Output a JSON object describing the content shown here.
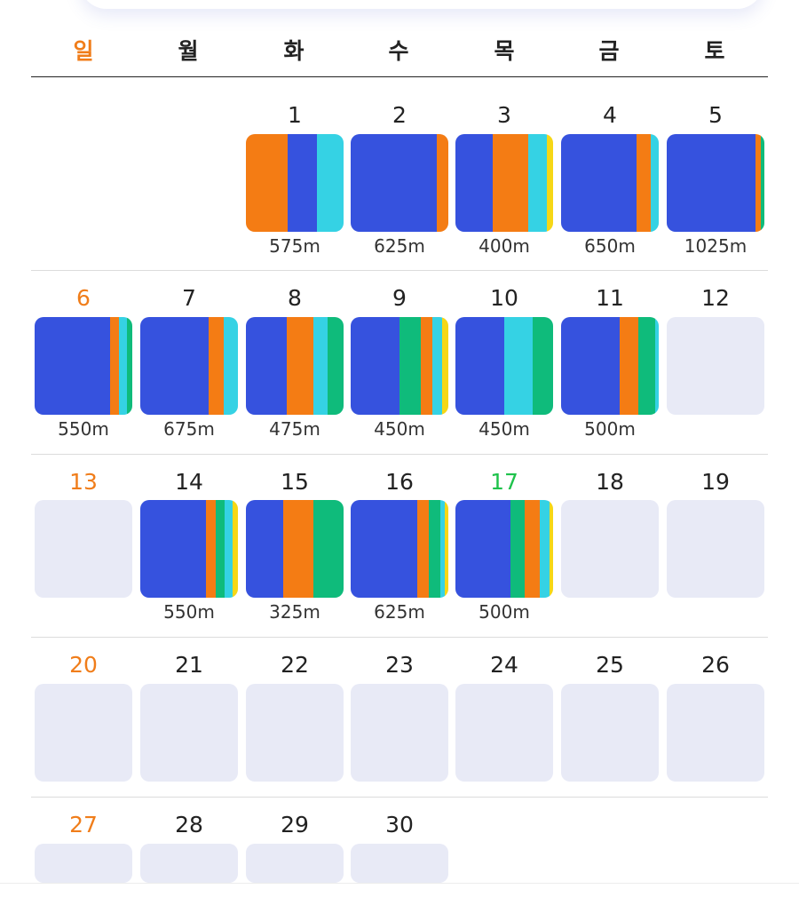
{
  "weekdays": [
    "일",
    "월",
    "화",
    "수",
    "목",
    "금",
    "토"
  ],
  "colors": {
    "blue": "#3652de",
    "orange": "#f47c14",
    "cyan": "#35d2e4",
    "green": "#0fbb7b",
    "yellow": "#f6d716",
    "empty": "#e8eaf6",
    "sunday": "#f07d1a",
    "today": "#1ec24b"
  },
  "month": {
    "first_weekday": 2,
    "days_in_month": 30,
    "today": 17
  },
  "days": [
    {
      "day": 1,
      "distance": "575m",
      "segments": [
        [
          "orange",
          43
        ],
        [
          "blue",
          30
        ],
        [
          "cyan",
          27
        ]
      ]
    },
    {
      "day": 2,
      "distance": "625m",
      "segments": [
        [
          "blue",
          88
        ],
        [
          "orange",
          12
        ]
      ]
    },
    {
      "day": 3,
      "distance": "400m",
      "segments": [
        [
          "blue",
          38
        ],
        [
          "orange",
          37
        ],
        [
          "cyan",
          19
        ],
        [
          "yellow",
          6
        ]
      ]
    },
    {
      "day": 4,
      "distance": "650m",
      "segments": [
        [
          "blue",
          77
        ],
        [
          "orange",
          15
        ],
        [
          "cyan",
          8
        ]
      ]
    },
    {
      "day": 5,
      "distance": "1025m",
      "segments": [
        [
          "blue",
          91
        ],
        [
          "orange",
          5
        ],
        [
          "green",
          4
        ]
      ]
    },
    {
      "day": 6,
      "distance": "550m",
      "segments": [
        [
          "blue",
          77
        ],
        [
          "orange",
          9
        ],
        [
          "cyan",
          9
        ],
        [
          "green",
          5
        ]
      ]
    },
    {
      "day": 7,
      "distance": "675m",
      "segments": [
        [
          "blue",
          70
        ],
        [
          "orange",
          15
        ],
        [
          "cyan",
          15
        ]
      ]
    },
    {
      "day": 8,
      "distance": "475m",
      "segments": [
        [
          "blue",
          42
        ],
        [
          "orange",
          27
        ],
        [
          "cyan",
          15
        ],
        [
          "green",
          16
        ]
      ]
    },
    {
      "day": 9,
      "distance": "450m",
      "segments": [
        [
          "blue",
          50
        ],
        [
          "green",
          22
        ],
        [
          "orange",
          12
        ],
        [
          "cyan",
          10
        ],
        [
          "yellow",
          6
        ]
      ]
    },
    {
      "day": 10,
      "distance": "450m",
      "segments": [
        [
          "blue",
          50
        ],
        [
          "cyan",
          29
        ],
        [
          "green",
          21
        ]
      ]
    },
    {
      "day": 11,
      "distance": "500m",
      "segments": [
        [
          "blue",
          60
        ],
        [
          "orange",
          19
        ],
        [
          "green",
          17
        ],
        [
          "cyan",
          4
        ]
      ]
    },
    {
      "day": 12,
      "distance": "",
      "segments": []
    },
    {
      "day": 13,
      "distance": "",
      "segments": []
    },
    {
      "day": 14,
      "distance": "550m",
      "segments": [
        [
          "blue",
          67
        ],
        [
          "orange",
          10
        ],
        [
          "green",
          9
        ],
        [
          "cyan",
          9
        ],
        [
          "yellow",
          5
        ]
      ]
    },
    {
      "day": 15,
      "distance": "325m",
      "segments": [
        [
          "blue",
          38
        ],
        [
          "orange",
          31
        ],
        [
          "green",
          31
        ]
      ]
    },
    {
      "day": 16,
      "distance": "625m",
      "segments": [
        [
          "blue",
          68
        ],
        [
          "orange",
          12
        ],
        [
          "green",
          12
        ],
        [
          "cyan",
          4
        ],
        [
          "yellow",
          4
        ]
      ]
    },
    {
      "day": 17,
      "distance": "500m",
      "segments": [
        [
          "blue",
          56
        ],
        [
          "green",
          15
        ],
        [
          "orange",
          15
        ],
        [
          "cyan",
          10
        ],
        [
          "yellow",
          4
        ]
      ]
    },
    {
      "day": 18,
      "distance": "",
      "segments": []
    },
    {
      "day": 19,
      "distance": "",
      "segments": []
    },
    {
      "day": 20,
      "distance": "",
      "segments": []
    },
    {
      "day": 21,
      "distance": "",
      "segments": []
    },
    {
      "day": 22,
      "distance": "",
      "segments": []
    },
    {
      "day": 23,
      "distance": "",
      "segments": []
    },
    {
      "day": 24,
      "distance": "",
      "segments": []
    },
    {
      "day": 25,
      "distance": "",
      "segments": []
    },
    {
      "day": 26,
      "distance": "",
      "segments": []
    },
    {
      "day": 27,
      "distance": "",
      "segments": []
    },
    {
      "day": 28,
      "distance": "",
      "segments": []
    },
    {
      "day": 29,
      "distance": "",
      "segments": []
    },
    {
      "day": 30,
      "distance": "",
      "segments": []
    }
  ]
}
